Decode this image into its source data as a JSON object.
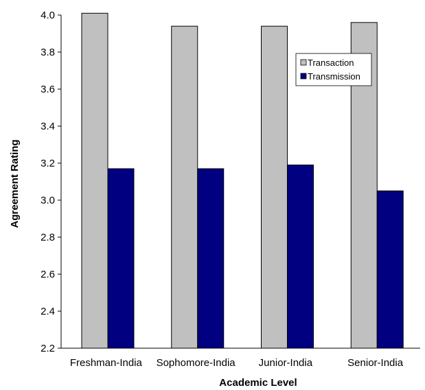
{
  "chart_data": {
    "type": "bar",
    "title": "",
    "xlabel": "Academic Level",
    "ylabel": "Agreement Rating",
    "categories": [
      "Freshman-India",
      "Sophomore-India",
      "Junior-India",
      "Senior-India"
    ],
    "series": [
      {
        "name": "Transaction",
        "color": "#c0c0c0",
        "values": [
          4.01,
          3.94,
          3.94,
          3.96
        ]
      },
      {
        "name": "Transmission",
        "color": "#000080",
        "values": [
          3.17,
          3.17,
          3.19,
          3.05
        ]
      }
    ],
    "ylim": [
      2.2,
      4.0
    ],
    "yticks": [
      "2.2",
      "2.4",
      "2.6",
      "2.8",
      "3.0",
      "3.2",
      "3.4",
      "3.6",
      "3.8",
      "4.0"
    ],
    "grid": false,
    "legend_position": "top-right"
  }
}
